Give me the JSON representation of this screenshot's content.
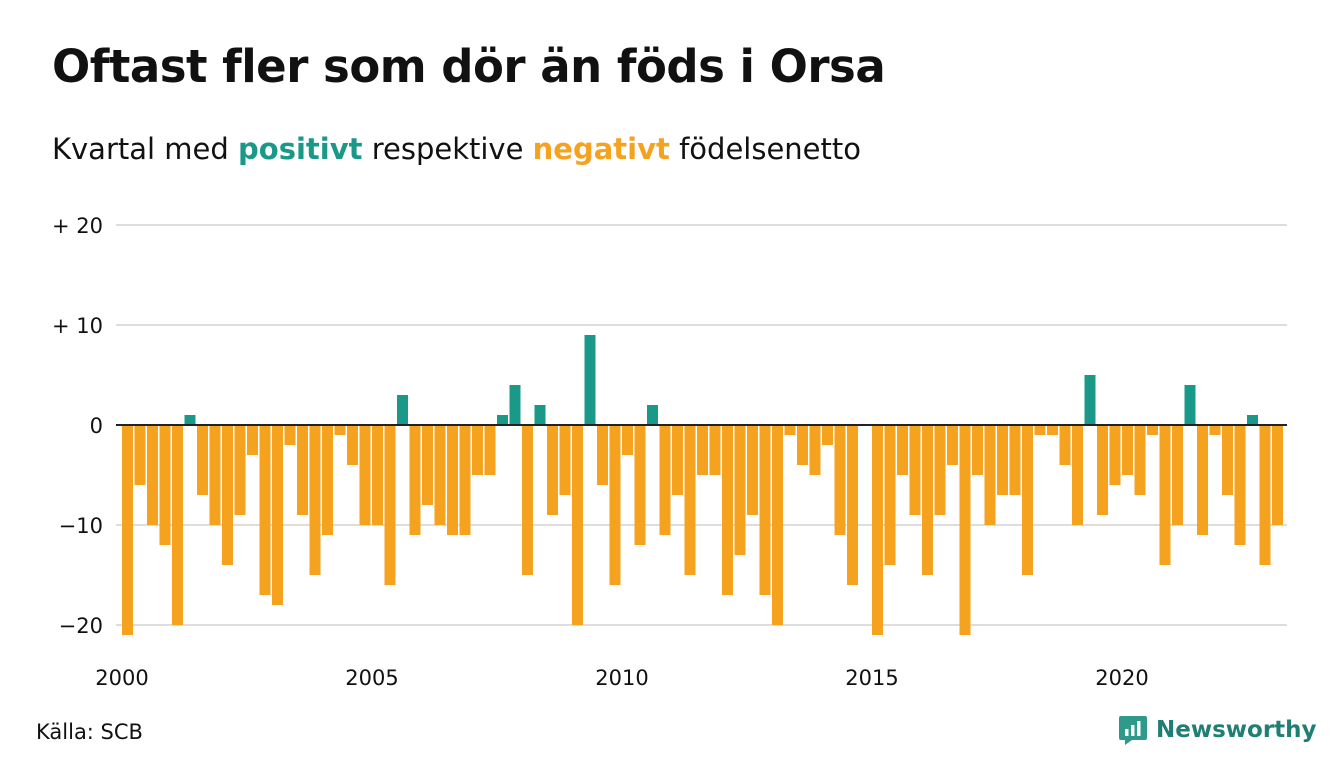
{
  "title": "Oftast fler som dör än föds i Orsa",
  "subtitle": {
    "prefix": "Kvartal med ",
    "positive_word": "positivt",
    "middle": " respektive ",
    "negative_word": "negativt",
    "suffix": " födelsenetto"
  },
  "source": "Källa: SCB",
  "brand": {
    "name": "Newsworthy",
    "logo_icon": "newsworthy-logo-icon"
  },
  "colors": {
    "positive": "#1a9988",
    "negative": "#f5a21f",
    "grid": "#dddddd",
    "baseline": "#222222"
  },
  "chart_data": {
    "type": "bar",
    "title": "Oftast fler som dör än föds i Orsa",
    "subtitle": "Kvartal med positivt respektive negativt födelsenetto",
    "x_start": 2000,
    "periods_per_year": 4,
    "xticks": [
      2000,
      2005,
      2010,
      2015,
      2020
    ],
    "ylim": [
      -21,
      20
    ],
    "yticks": [
      {
        "value": 20,
        "label": "+ 20"
      },
      {
        "value": 10,
        "label": "+ 10"
      },
      {
        "value": 0,
        "label": "0"
      },
      {
        "value": -10,
        "label": "−10"
      },
      {
        "value": -20,
        "label": "−20"
      }
    ],
    "grid": true,
    "values": [
      -21,
      -6,
      -10,
      -12,
      -20,
      1,
      -7,
      -10,
      -14,
      -9,
      -3,
      -17,
      -18,
      -2,
      -9,
      -15,
      -11,
      -1,
      -4,
      -10,
      -10,
      -16,
      3,
      -11,
      -8,
      -10,
      -11,
      -11,
      -5,
      -5,
      1,
      4,
      -15,
      2,
      -9,
      -7,
      -20,
      9,
      -6,
      -16,
      -3,
      -12,
      2,
      -11,
      -7,
      -15,
      -5,
      -5,
      -17,
      -13,
      -9,
      -17,
      -20,
      -1,
      -4,
      -5,
      -2,
      -11,
      -16,
      0,
      -21,
      -14,
      -5,
      -9,
      -15,
      -9,
      -4,
      -21,
      -5,
      -10,
      -7,
      -7,
      -15,
      -1,
      -1,
      -4,
      -10,
      5,
      -9,
      -6,
      -5,
      -7,
      -1,
      -14,
      -10,
      4,
      -11,
      -1,
      -7,
      -12,
      1,
      -14,
      -10
    ]
  }
}
